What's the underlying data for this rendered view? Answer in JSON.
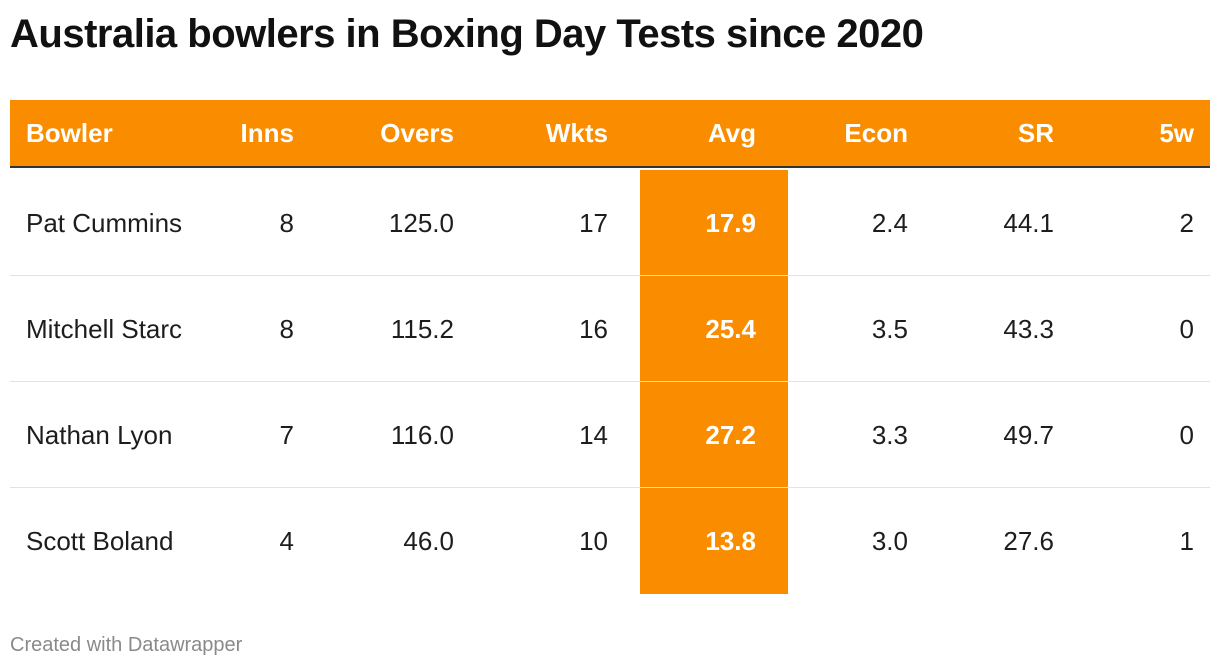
{
  "title": "Australia bowlers in Boxing Day Tests since 2020",
  "footer": "Created with Datawrapper",
  "colors": {
    "header_bg": "#fa8c00",
    "highlight_column": "#fa8c00",
    "header_text": "#ffffff"
  },
  "chart_data": {
    "type": "table",
    "title": "Australia bowlers in Boxing Day Tests since 2020",
    "columns": [
      "Bowler",
      "Inns",
      "Overs",
      "Wkts",
      "Avg",
      "Econ",
      "SR",
      "5w"
    ],
    "highlighted_column": "Avg",
    "rows": [
      [
        "Pat Cummins",
        "8",
        "125.0",
        "17",
        "17.9",
        "2.4",
        "44.1",
        "2"
      ],
      [
        "Mitchell Starc",
        "8",
        "115.2",
        "16",
        "25.4",
        "3.5",
        "43.3",
        "0"
      ],
      [
        "Nathan Lyon",
        "7",
        "116.0",
        "14",
        "27.2",
        "3.3",
        "49.7",
        "0"
      ],
      [
        "Scott Boland",
        "4",
        "46.0",
        "10",
        "13.8",
        "3.0",
        "27.6",
        "1"
      ]
    ]
  }
}
